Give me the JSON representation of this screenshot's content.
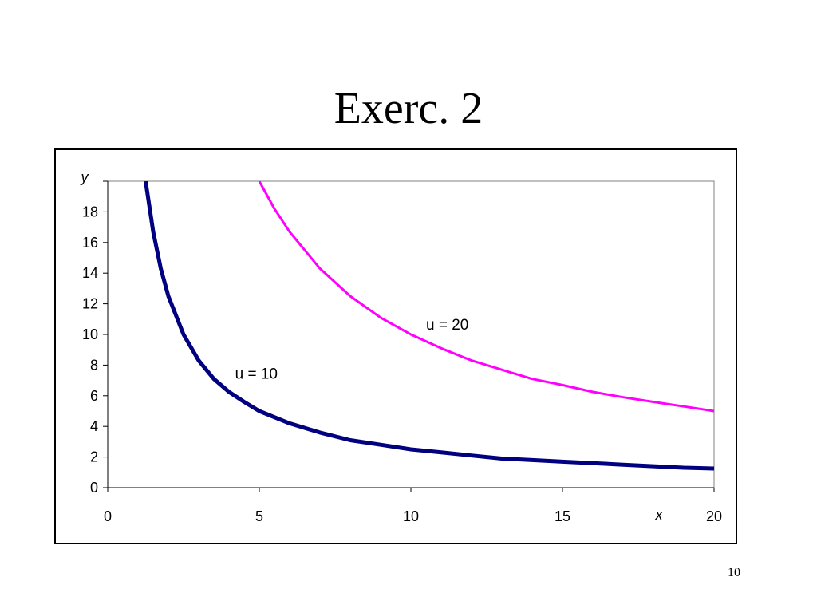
{
  "slide": {
    "title": "Exerc. 2",
    "page_number": "10"
  },
  "chart_data": {
    "type": "line",
    "title": "",
    "xlabel": "x",
    "ylabel": "y",
    "xlim": [
      0,
      20
    ],
    "ylim": [
      0,
      20
    ],
    "x_ticks": [
      0,
      5,
      10,
      15,
      20
    ],
    "y_ticks": [
      0,
      2,
      4,
      6,
      8,
      10,
      12,
      14,
      16,
      18
    ],
    "grid": false,
    "series": [
      {
        "color": "#000080",
        "x": [
          1.25,
          1.5,
          1.75,
          2,
          2.5,
          3,
          3.5,
          4,
          4.5,
          5,
          6,
          7,
          8,
          9,
          10,
          11,
          12,
          13,
          14,
          15,
          16,
          17,
          18,
          19,
          20
        ],
        "values": [
          20,
          16.7,
          14.3,
          12.5,
          10,
          8.3,
          7.1,
          6.25,
          5.6,
          5,
          4.2,
          3.6,
          3.1,
          2.8,
          2.5,
          2.3,
          2.1,
          1.9,
          1.8,
          1.7,
          1.6,
          1.5,
          1.4,
          1.3,
          1.25
        ]
      },
      {
        "color": "#FF00FF",
        "x": [
          5,
          5.5,
          6,
          7,
          8,
          9,
          10,
          11,
          12,
          13,
          14,
          15,
          16,
          17,
          18,
          19,
          20
        ],
        "values": [
          20,
          18.2,
          16.7,
          14.3,
          12.5,
          11.1,
          10,
          9.1,
          8.3,
          7.7,
          7.1,
          6.7,
          6.25,
          5.9,
          5.6,
          5.3,
          5
        ]
      }
    ],
    "annotations": [
      {
        "text": "u = 10",
        "x": 4.2,
        "y": 7.1
      },
      {
        "text": "u = 20",
        "x": 10.5,
        "y": 10.3
      }
    ]
  }
}
